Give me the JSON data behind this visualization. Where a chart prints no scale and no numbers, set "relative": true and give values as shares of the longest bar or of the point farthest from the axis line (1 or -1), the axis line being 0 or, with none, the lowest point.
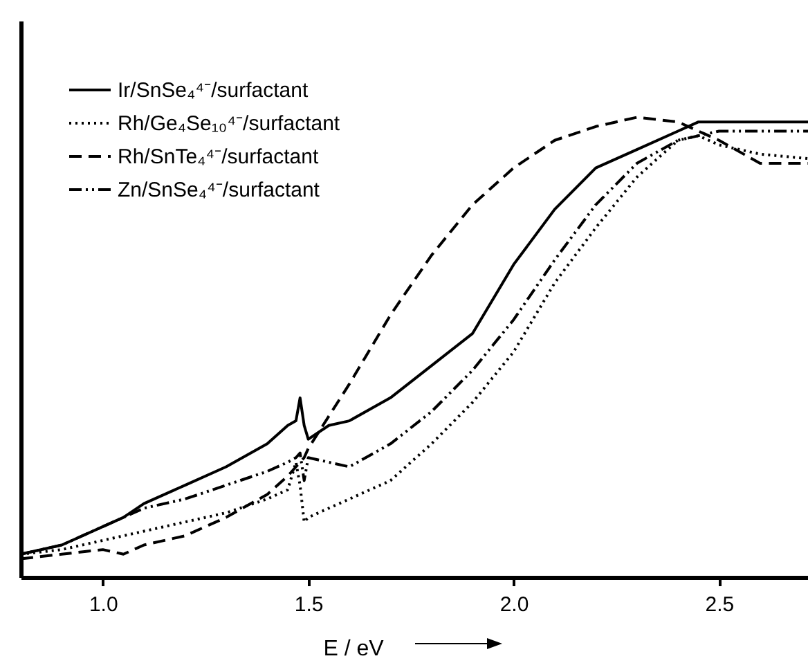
{
  "chart_data": {
    "type": "line",
    "relative": true,
    "xlabel": "E / eV",
    "xlim": [
      0.8,
      2.72
    ],
    "xticks": [
      {
        "value": 1,
        "label": "1.0"
      },
      1.5,
      {
        "value": 2,
        "label": "2.0"
      },
      2.5
    ],
    "legend": "top left",
    "grid": false,
    "marker": "none",
    "x": [
      0.8,
      0.9,
      1.0,
      1.05,
      1.1,
      1.2,
      1.3,
      1.4,
      1.45,
      1.47,
      1.48,
      1.49,
      1.5,
      1.55,
      1.6,
      1.7,
      1.8,
      1.9,
      2.0,
      2.1,
      2.2,
      2.3,
      2.4,
      2.45,
      2.5,
      2.6,
      2.72
    ],
    "series": [
      {
        "name": "Ir/SnSe₄⁴⁻/surfactant",
        "color": "#000000",
        "line_style": "solid",
        "values": [
          0.05,
          0.07,
          0.11,
          0.13,
          0.16,
          0.2,
          0.24,
          0.29,
          0.33,
          0.34,
          0.39,
          0.33,
          0.3,
          0.33,
          0.34,
          0.39,
          0.46,
          0.53,
          0.68,
          0.8,
          0.89,
          0.93,
          0.97,
          0.99,
          0.99,
          0.99,
          0.99
        ]
      },
      {
        "name": "Rh/Ge₄Se₁₀⁴⁻/surfactant",
        "color": "#000000",
        "line_style": "dotted",
        "values": [
          0.05,
          0.06,
          0.08,
          0.09,
          0.1,
          0.12,
          0.14,
          0.17,
          0.19,
          0.25,
          0.2,
          0.12,
          0.13,
          0.15,
          0.17,
          0.21,
          0.29,
          0.38,
          0.49,
          0.64,
          0.76,
          0.87,
          0.95,
          0.96,
          0.94,
          0.92,
          0.91
        ]
      },
      {
        "name": "Rh/SnTe₄⁴⁻/surfactant",
        "color": "#000000",
        "line_style": "dashed",
        "values": [
          0.04,
          0.05,
          0.06,
          0.05,
          0.07,
          0.09,
          0.13,
          0.18,
          0.22,
          0.24,
          0.25,
          0.26,
          0.28,
          0.35,
          0.42,
          0.57,
          0.7,
          0.81,
          0.89,
          0.95,
          0.98,
          1.0,
          0.99,
          0.97,
          0.95,
          0.9,
          0.9
        ]
      },
      {
        "name": "Zn/SnSe₄⁴⁻/surfactant",
        "color": "#000000",
        "line_style": "dashdot",
        "values": [
          0.05,
          0.07,
          0.11,
          0.13,
          0.15,
          0.17,
          0.2,
          0.23,
          0.25,
          0.26,
          0.27,
          0.21,
          0.26,
          0.25,
          0.24,
          0.29,
          0.36,
          0.45,
          0.56,
          0.69,
          0.81,
          0.9,
          0.95,
          0.96,
          0.97,
          0.97,
          0.97
        ]
      }
    ]
  }
}
